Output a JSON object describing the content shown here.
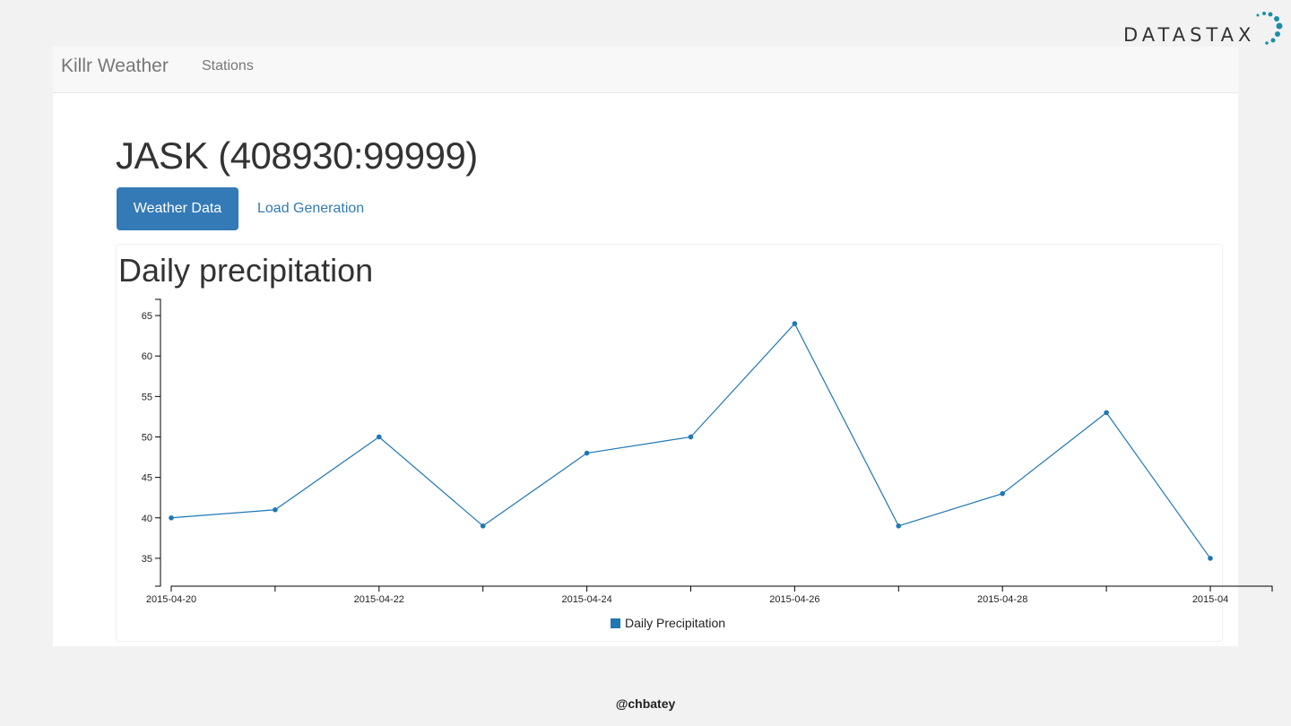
{
  "logo": {
    "text": "DATASTAX",
    "accent_color": "#1a8fa8"
  },
  "navbar": {
    "brand": "Killr Weather",
    "links": [
      "Stations"
    ]
  },
  "station": {
    "title": "JASK (408930:99999)"
  },
  "tabs": [
    {
      "label": "Weather Data",
      "active": true
    },
    {
      "label": "Load Generation",
      "active": false
    }
  ],
  "section": {
    "title": "Daily precipitation"
  },
  "chart_data": {
    "type": "line",
    "x": [
      "2015-04-20",
      "2015-04-21",
      "2015-04-22",
      "2015-04-23",
      "2015-04-24",
      "2015-04-25",
      "2015-04-26",
      "2015-04-27",
      "2015-04-28",
      "2015-04-29",
      "2015-04-30"
    ],
    "x_tick_labels": [
      "2015-04-20",
      "2015-04-22",
      "2015-04-24",
      "2015-04-26",
      "2015-04-28",
      "2015-04"
    ],
    "series": [
      {
        "name": "Daily Precipitation",
        "values": [
          40,
          41,
          50,
          39,
          48,
          50,
          64,
          39,
          43,
          53,
          35
        ],
        "color": "#1f77b4"
      }
    ],
    "y_ticks": [
      35,
      40,
      45,
      50,
      55,
      60,
      65
    ],
    "ylim": [
      32,
      67
    ],
    "grid": false,
    "legend_position": "bottom-center"
  },
  "footer": {
    "handle": "@chbatey"
  }
}
